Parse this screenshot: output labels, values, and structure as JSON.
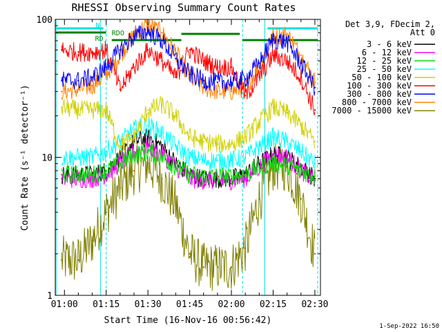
{
  "chart_data": {
    "type": "line",
    "title": "RHESSI Observing Summary Count Rates",
    "xlabel": "Start Time (16-Nov-16 00:56:42)",
    "ylabel": "Count Rate (s⁻¹ detector⁻¹)",
    "y_scale": "log",
    "ylim": [
      1,
      100
    ],
    "xlim": [
      "00:56:42",
      "02:32:00"
    ],
    "y_ticks": [
      "1",
      "10",
      "100"
    ],
    "x_ticks": [
      "01:00",
      "01:15",
      "01:30",
      "01:45",
      "02:00",
      "02:15",
      "02:30"
    ],
    "legend_header": [
      "Det 3,9, FDecim 2,",
      "Att 0"
    ],
    "legend_position": "right",
    "timestamp": "1-Sep-2022 16:50",
    "flags": [
      {
        "label": "N",
        "color": "#00e0e0"
      },
      {
        "label": "RDO",
        "color": "#008000"
      },
      {
        "label": "RD",
        "color": "#008000"
      }
    ],
    "series": [
      {
        "name": "3 - 6 keV",
        "color": "#000000",
        "x": [
          "00:59",
          "01:05",
          "01:10",
          "01:15",
          "01:20",
          "01:25",
          "01:30",
          "01:35",
          "01:40",
          "01:45",
          "01:50",
          "01:55",
          "02:00",
          "02:05",
          "02:10",
          "02:15",
          "02:20",
          "02:25",
          "02:30"
        ],
        "values": [
          7.5,
          7.5,
          7.5,
          8.0,
          10,
          13,
          14,
          12,
          9,
          7.5,
          7.0,
          7.0,
          7.0,
          7.5,
          9,
          10.5,
          10,
          8.5,
          7.0
        ]
      },
      {
        "name": "6 - 12 keV",
        "color": "#ff00ff",
        "x": [
          "00:59",
          "01:05",
          "01:10",
          "01:15",
          "01:20",
          "01:25",
          "01:30",
          "01:35",
          "01:40",
          "01:45",
          "01:50",
          "01:55",
          "02:00",
          "02:05",
          "02:10",
          "02:15",
          "02:20",
          "02:25",
          "02:30"
        ],
        "values": [
          7.0,
          7.0,
          7.0,
          7.5,
          9,
          11,
          12,
          10.5,
          8.5,
          7.0,
          6.8,
          6.8,
          6.8,
          7.0,
          8.5,
          10.5,
          10,
          8,
          6.8
        ]
      },
      {
        "name": "12 - 25 keV",
        "color": "#00e000",
        "x": [
          "00:59",
          "01:05",
          "01:10",
          "01:15",
          "01:20",
          "01:25",
          "01:30",
          "01:35",
          "01:40",
          "01:45",
          "01:50",
          "01:55",
          "02:00",
          "02:05",
          "02:10",
          "02:15",
          "02:20",
          "02:25",
          "02:30"
        ],
        "values": [
          7.5,
          7.5,
          7.5,
          8,
          9,
          10.5,
          11,
          10,
          8.5,
          7.5,
          7.3,
          7.3,
          7.3,
          7.5,
          8.5,
          9,
          8.8,
          8,
          7.3
        ]
      },
      {
        "name": "25 - 50 keV",
        "color": "#00ffff",
        "x": [
          "00:59",
          "01:05",
          "01:10",
          "01:15",
          "01:20",
          "01:25",
          "01:30",
          "01:35",
          "01:40",
          "01:45",
          "01:50",
          "01:55",
          "02:00",
          "02:05",
          "02:10",
          "02:15",
          "02:20",
          "02:25",
          "02:30"
        ],
        "values": [
          10,
          10,
          10,
          11,
          13,
          16,
          17,
          15,
          12,
          10,
          9.5,
          9.5,
          9.5,
          10,
          12,
          14,
          13,
          11,
          9
        ]
      },
      {
        "name": "50 - 100 keV",
        "color": "#d0d000",
        "x": [
          "00:59",
          "01:05",
          "01:10",
          "01:15",
          "01:20",
          "01:25",
          "01:30",
          "01:35",
          "01:40",
          "01:45",
          "01:50",
          "01:55",
          "02:00",
          "02:05",
          "02:10",
          "02:15",
          "02:20",
          "02:25",
          "02:30"
        ],
        "values": [
          23,
          22,
          22,
          22,
          12,
          14,
          22,
          24,
          20,
          14,
          13,
          12.5,
          12.5,
          14,
          18,
          23,
          21,
          17,
          13
        ]
      },
      {
        "name": "100 - 300 keV",
        "color": "#ff0000",
        "x": [
          "00:59",
          "01:05",
          "01:10",
          "01:15",
          "01:20",
          "01:25",
          "01:30",
          "01:35",
          "01:40",
          "01:45",
          "01:50",
          "01:55",
          "02:00",
          "02:05",
          "02:10",
          "02:15",
          "02:20",
          "02:25",
          "02:30"
        ],
        "values": [
          60,
          58,
          58,
          60,
          31,
          45,
          60,
          50,
          38,
          60,
          50,
          45,
          45,
          28,
          38,
          55,
          50,
          38,
          22
        ]
      },
      {
        "name": "300 - 800 keV",
        "color": "#0000ff",
        "x": [
          "00:59",
          "01:05",
          "01:10",
          "01:15",
          "01:20",
          "01:25",
          "01:30",
          "01:35",
          "01:40",
          "01:45",
          "01:50",
          "01:55",
          "02:00",
          "02:05",
          "02:10",
          "02:15",
          "02:20",
          "02:25",
          "02:30"
        ],
        "values": [
          36,
          36,
          38,
          45,
          60,
          75,
          82,
          70,
          52,
          40,
          36,
          35,
          35,
          37,
          48,
          72,
          68,
          48,
          32
        ]
      },
      {
        "name": "800 - 7000 keV",
        "color": "#ff8000",
        "x": [
          "00:59",
          "01:05",
          "01:10",
          "01:15",
          "01:20",
          "01:25",
          "01:30",
          "01:35",
          "01:40",
          "01:45",
          "01:50",
          "01:55",
          "02:00",
          "02:05",
          "02:10",
          "02:15",
          "02:20",
          "02:25",
          "02:30"
        ],
        "values": [
          30,
          31,
          33,
          40,
          55,
          78,
          92,
          80,
          58,
          38,
          32,
          30,
          30,
          32,
          45,
          75,
          78,
          55,
          35
        ]
      },
      {
        "name": "7000 - 15000 keV",
        "color": "#808000",
        "x": [
          "00:59",
          "01:05",
          "01:10",
          "01:15",
          "01:20",
          "01:25",
          "01:30",
          "01:35",
          "01:40",
          "01:45",
          "01:50",
          "01:55",
          "02:00",
          "02:05",
          "02:10",
          "02:15",
          "02:20",
          "02:25",
          "02:30"
        ],
        "values": [
          1.8,
          1.8,
          2.5,
          4.0,
          6.0,
          8.0,
          9.0,
          7.0,
          4.5,
          2.0,
          1.6,
          1.6,
          1.6,
          2.2,
          5.0,
          8.5,
          8.5,
          5.0,
          2.0
        ]
      }
    ]
  }
}
